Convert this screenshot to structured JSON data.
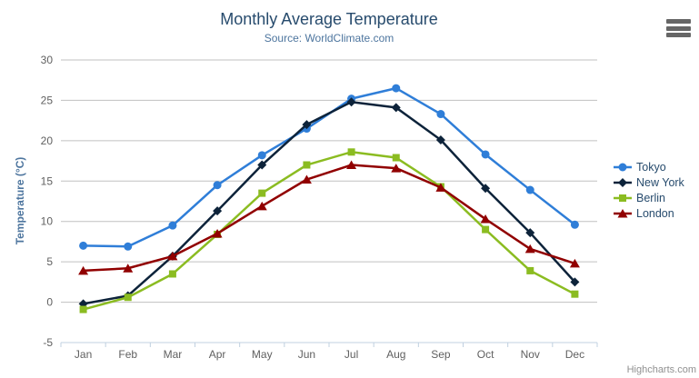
{
  "header": {
    "title": "Monthly Average Temperature",
    "subtitle": "Source: WorldClimate.com"
  },
  "toolbar": {
    "menu_icon": "hamburger-icon"
  },
  "credits": {
    "label": "Highcharts.com"
  },
  "colors": {
    "title": "#274b6d",
    "subtitle": "#4d759e",
    "axis_title": "#4d759e",
    "axis_labels": "#606060",
    "gridline": "#C0C0C0",
    "axis_line": "#C0D0E0",
    "legend_text": "#274b6d",
    "credits_text": "#909090",
    "menu_icon": "#666666"
  },
  "chart_data": {
    "type": "line",
    "title": "Monthly Average Temperature",
    "subtitle": "Source: WorldClimate.com",
    "categories": [
      "Jan",
      "Feb",
      "Mar",
      "Apr",
      "May",
      "Jun",
      "Jul",
      "Aug",
      "Sep",
      "Oct",
      "Nov",
      "Dec"
    ],
    "xlabel": "",
    "ylabel": "Temperature (°C)",
    "ylim": [
      -5,
      30
    ],
    "ytick_interval": 5,
    "grid": true,
    "legend_position": "right",
    "series": [
      {
        "name": "Tokyo",
        "color": "#2f7ed8",
        "marker": "circle",
        "values": [
          7.0,
          6.9,
          9.5,
          14.5,
          18.2,
          21.5,
          25.2,
          26.5,
          23.3,
          18.3,
          13.9,
          9.6
        ]
      },
      {
        "name": "New York",
        "color": "#0d233a",
        "marker": "diamond",
        "values": [
          -0.2,
          0.8,
          5.7,
          11.3,
          17.0,
          22.0,
          24.8,
          24.1,
          20.1,
          14.1,
          8.6,
          2.5
        ]
      },
      {
        "name": "Berlin",
        "color": "#8bbc21",
        "marker": "square",
        "values": [
          -0.9,
          0.6,
          3.5,
          8.4,
          13.5,
          17.0,
          18.6,
          17.9,
          14.3,
          9.0,
          3.9,
          1.0
        ]
      },
      {
        "name": "London",
        "color": "#910000",
        "marker": "triangle",
        "values": [
          3.9,
          4.2,
          5.7,
          8.5,
          11.9,
          15.2,
          17.0,
          16.6,
          14.2,
          10.3,
          6.6,
          4.8
        ]
      }
    ]
  }
}
